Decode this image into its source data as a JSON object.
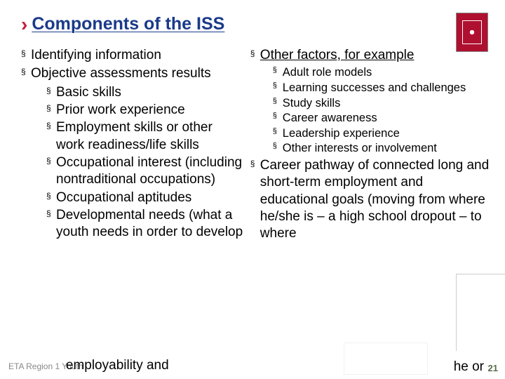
{
  "title": "Components of the ISS",
  "logo_bg": "#b01030",
  "left": {
    "items": [
      {
        "text": "Identifying information"
      },
      {
        "text": "Objective assessments results",
        "sub": [
          "Basic skills",
          "Prior work experience",
          "Employment skills or other work readiness/life skills",
          "Occupational interest (including nontraditional occupations)",
          "Occupational aptitudes",
          "Developmental needs (what a youth needs in order to develop"
        ]
      }
    ],
    "overflow": "employability and"
  },
  "right": {
    "items": [
      {
        "text": "Other factors, for example",
        "underline": true,
        "sub_small": [
          "Adult role models",
          "Learning successes and challenges",
          "Study skills",
          "Career awareness",
          "Leadership experience",
          "Other interests or involvement"
        ]
      },
      {
        "text": "Career pathway of connected long and short-term employment and educational goals (moving from where he/she is – a high school dropout – to where"
      }
    ],
    "trailing": "he or"
  },
  "footer": "ETA Region 1 Youth",
  "page": "21"
}
